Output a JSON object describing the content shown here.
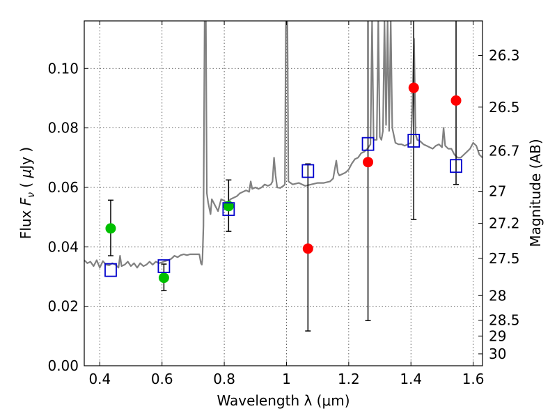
{
  "chart_data": {
    "type": "scatter",
    "xlabel": "Wavelength  λ (μm)",
    "ylabel": "Flux  F_ν  ( μJy )",
    "ylabel_parts": [
      "Flux  ",
      "F",
      "ν",
      "  ( ",
      "μ",
      "Jy )"
    ],
    "y2label": "Magnitude (AB)",
    "xlim": [
      0.35,
      1.63
    ],
    "ylim": [
      0.0,
      0.116
    ],
    "grid": true,
    "x_ticks": [
      0.4,
      0.6,
      0.8,
      1.0,
      1.2,
      1.4,
      1.6
    ],
    "x_tick_labels": [
      "0.4",
      "0.6",
      "0.8",
      "1",
      "1.2",
      "1.4",
      "1.6"
    ],
    "y_ticks": [
      0.0,
      0.02,
      0.04,
      0.06,
      0.08,
      0.1
    ],
    "y_tick_labels": [
      "0.00",
      "0.02",
      "0.04",
      "0.06",
      "0.08",
      "0.10"
    ],
    "magnitude_ticks": [
      {
        "label": "26.3",
        "flux": 0.1044
      },
      {
        "label": "26.5",
        "flux": 0.087
      },
      {
        "label": "26.7",
        "flux": 0.0723
      },
      {
        "label": "27",
        "flux": 0.0587
      },
      {
        "label": "27.2",
        "flux": 0.0479
      },
      {
        "label": "27.5",
        "flux": 0.0361
      },
      {
        "label": "28",
        "flux": 0.0236
      },
      {
        "label": "28.5",
        "flux": 0.0153
      },
      {
        "label": "29",
        "flux": 0.01
      },
      {
        "label": "30",
        "flux": 0.004
      }
    ],
    "series": [
      {
        "marker": "circle",
        "color": "#00c000",
        "points": [
          {
            "x": 0.435,
            "y": 0.0462,
            "err": [
              0.037,
              0.0557
            ]
          },
          {
            "x": 0.606,
            "y": 0.0296,
            "err": [
              0.0253,
              0.0342
            ]
          },
          {
            "x": 0.814,
            "y": 0.0537,
            "err": [
              0.0452,
              0.0625
            ]
          }
        ]
      },
      {
        "marker": "circle",
        "color": "#ff0000",
        "points": [
          {
            "x": 1.069,
            "y": 0.0394,
            "err": [
              0.0117,
              0.0679
            ]
          },
          {
            "x": 1.262,
            "y": 0.0685,
            "err": [
              0.0152,
              0.116
            ]
          },
          {
            "x": 1.409,
            "y": 0.0935,
            "err": [
              0.0492,
              0.116
            ]
          },
          {
            "x": 1.545,
            "y": 0.0892,
            "err": [
              0.061,
              0.116
            ]
          }
        ]
      },
      {
        "marker": "open-square",
        "color": "#0000cc",
        "points": [
          {
            "x": 0.435,
            "y": 0.0322
          },
          {
            "x": 0.606,
            "y": 0.0335
          },
          {
            "x": 0.814,
            "y": 0.0527
          },
          {
            "x": 1.069,
            "y": 0.0655
          },
          {
            "x": 1.262,
            "y": 0.0746
          },
          {
            "x": 1.409,
            "y": 0.0757
          },
          {
            "x": 1.545,
            "y": 0.0672
          }
        ]
      }
    ],
    "model_spectrum": {
      "color": "#808080",
      "points": [
        [
          0.35,
          0.0355
        ],
        [
          0.36,
          0.0345
        ],
        [
          0.37,
          0.035
        ],
        [
          0.38,
          0.0335
        ],
        [
          0.39,
          0.0355
        ],
        [
          0.4,
          0.033
        ],
        [
          0.41,
          0.0352
        ],
        [
          0.42,
          0.034
        ],
        [
          0.43,
          0.0338
        ],
        [
          0.44,
          0.0345
        ],
        [
          0.45,
          0.034
        ],
        [
          0.46,
          0.033
        ],
        [
          0.465,
          0.037
        ],
        [
          0.47,
          0.0335
        ],
        [
          0.48,
          0.034
        ],
        [
          0.49,
          0.035
        ],
        [
          0.5,
          0.0335
        ],
        [
          0.51,
          0.0345
        ],
        [
          0.52,
          0.033
        ],
        [
          0.53,
          0.0345
        ],
        [
          0.54,
          0.0335
        ],
        [
          0.55,
          0.034
        ],
        [
          0.56,
          0.035
        ],
        [
          0.57,
          0.034
        ],
        [
          0.58,
          0.035
        ],
        [
          0.59,
          0.0345
        ],
        [
          0.6,
          0.0348
        ],
        [
          0.61,
          0.0352
        ],
        [
          0.62,
          0.0355
        ],
        [
          0.63,
          0.036
        ],
        [
          0.64,
          0.037
        ],
        [
          0.65,
          0.0365
        ],
        [
          0.66,
          0.0372
        ],
        [
          0.67,
          0.0375
        ],
        [
          0.68,
          0.0372
        ],
        [
          0.69,
          0.0375
        ],
        [
          0.7,
          0.0375
        ],
        [
          0.72,
          0.0375
        ],
        [
          0.725,
          0.0345
        ],
        [
          0.728,
          0.034
        ],
        [
          0.73,
          0.036
        ],
        [
          0.733,
          0.047
        ],
        [
          0.737,
          0.116
        ],
        [
          0.741,
          0.116
        ],
        [
          0.744,
          0.058
        ],
        [
          0.748,
          0.055
        ],
        [
          0.752,
          0.053
        ],
        [
          0.756,
          0.051
        ],
        [
          0.76,
          0.056
        ],
        [
          0.765,
          0.055
        ],
        [
          0.77,
          0.054
        ],
        [
          0.78,
          0.052
        ],
        [
          0.79,
          0.056
        ],
        [
          0.8,
          0.0555
        ],
        [
          0.81,
          0.0545
        ],
        [
          0.82,
          0.056
        ],
        [
          0.83,
          0.0565
        ],
        [
          0.84,
          0.057
        ],
        [
          0.85,
          0.058
        ],
        [
          0.86,
          0.0585
        ],
        [
          0.87,
          0.059
        ],
        [
          0.88,
          0.0585
        ],
        [
          0.885,
          0.062
        ],
        [
          0.89,
          0.0595
        ],
        [
          0.9,
          0.06
        ],
        [
          0.91,
          0.0595
        ],
        [
          0.92,
          0.06
        ],
        [
          0.93,
          0.061
        ],
        [
          0.94,
          0.0605
        ],
        [
          0.95,
          0.061
        ],
        [
          0.955,
          0.062
        ],
        [
          0.96,
          0.07
        ],
        [
          0.965,
          0.064
        ],
        [
          0.97,
          0.06
        ],
        [
          0.98,
          0.0598
        ],
        [
          0.99,
          0.0605
        ],
        [
          0.995,
          0.061
        ],
        [
          0.998,
          0.116
        ],
        [
          1.003,
          0.116
        ],
        [
          1.006,
          0.062
        ],
        [
          1.02,
          0.061
        ],
        [
          1.04,
          0.0615
        ],
        [
          1.06,
          0.0605
        ],
        [
          1.08,
          0.061
        ],
        [
          1.1,
          0.0615
        ],
        [
          1.12,
          0.0615
        ],
        [
          1.14,
          0.062
        ],
        [
          1.15,
          0.063
        ],
        [
          1.16,
          0.069
        ],
        [
          1.165,
          0.065
        ],
        [
          1.17,
          0.064
        ],
        [
          1.18,
          0.0645
        ],
        [
          1.19,
          0.065
        ],
        [
          1.2,
          0.066
        ],
        [
          1.21,
          0.068
        ],
        [
          1.22,
          0.0695
        ],
        [
          1.23,
          0.07
        ],
        [
          1.24,
          0.0715
        ],
        [
          1.25,
          0.072
        ],
        [
          1.26,
          0.073
        ],
        [
          1.27,
          0.0745
        ],
        [
          1.275,
          0.116
        ],
        [
          1.28,
          0.076
        ],
        [
          1.29,
          0.076
        ],
        [
          1.295,
          0.116
        ],
        [
          1.3,
          0.077
        ],
        [
          1.305,
          0.076
        ],
        [
          1.31,
          0.079
        ],
        [
          1.315,
          0.116
        ],
        [
          1.32,
          0.081
        ],
        [
          1.325,
          0.116
        ],
        [
          1.33,
          0.079
        ],
        [
          1.335,
          0.116
        ],
        [
          1.34,
          0.08
        ],
        [
          1.35,
          0.075
        ],
        [
          1.36,
          0.0745
        ],
        [
          1.37,
          0.0745
        ],
        [
          1.38,
          0.074
        ],
        [
          1.39,
          0.0745
        ],
        [
          1.4,
          0.075
        ],
        [
          1.405,
          0.089
        ],
        [
          1.41,
          0.11
        ],
        [
          1.415,
          0.078
        ],
        [
          1.42,
          0.076
        ],
        [
          1.43,
          0.0755
        ],
        [
          1.44,
          0.0745
        ],
        [
          1.45,
          0.074
        ],
        [
          1.46,
          0.0735
        ],
        [
          1.47,
          0.073
        ],
        [
          1.48,
          0.074
        ],
        [
          1.49,
          0.0745
        ],
        [
          1.5,
          0.0735
        ],
        [
          1.505,
          0.08
        ],
        [
          1.51,
          0.074
        ],
        [
          1.52,
          0.073
        ],
        [
          1.53,
          0.073
        ],
        [
          1.54,
          0.071
        ],
        [
          1.55,
          0.07
        ],
        [
          1.56,
          0.07
        ],
        [
          1.57,
          0.071
        ],
        [
          1.58,
          0.072
        ],
        [
          1.59,
          0.073
        ],
        [
          1.6,
          0.075
        ],
        [
          1.61,
          0.074
        ],
        [
          1.62,
          0.071
        ],
        [
          1.63,
          0.07
        ]
      ]
    }
  }
}
